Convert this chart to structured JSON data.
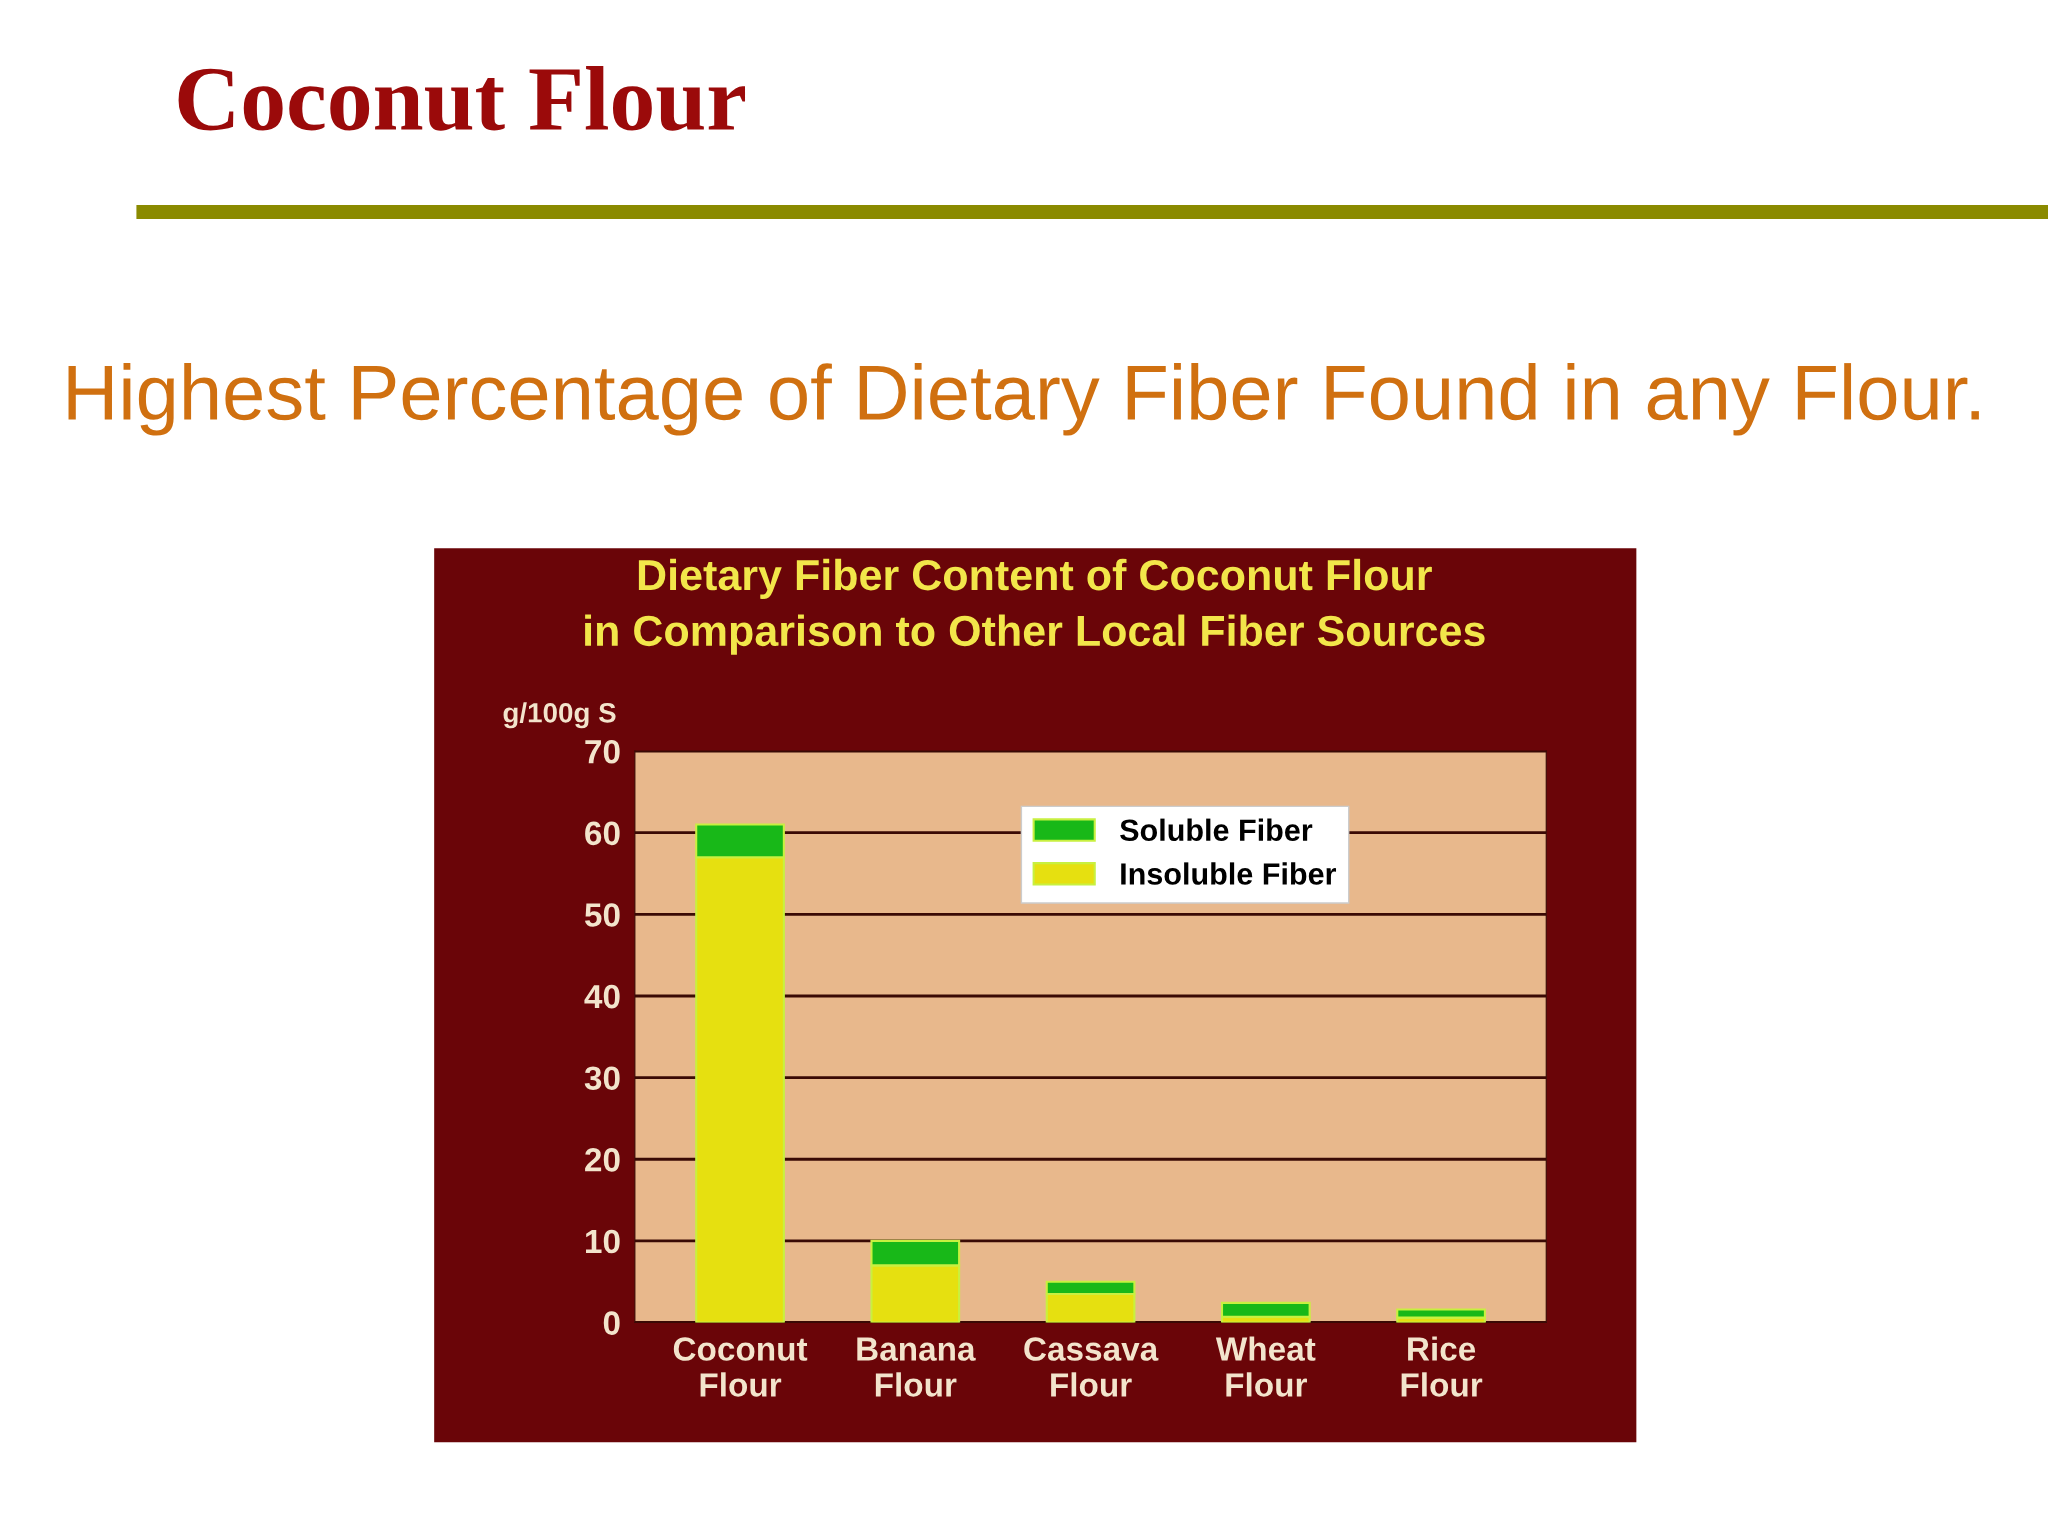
{
  "chart_data": {
    "type": "bar",
    "stacked": true,
    "title": "Dietary Fiber Content of Coconut Flour\nin Comparison to Other Local Fiber Sources",
    "ylabel": "g/100g S",
    "annotations": [
      "Coconut Flour",
      "Highest Percentage of Dietary Fiber Found in any Flour."
    ],
    "categories": [
      "Coconut\nFlour",
      "Banana\nFlour",
      "Cassava\nFlour",
      "Wheat\nFlour",
      "Rice\nFlour"
    ],
    "series": [
      {
        "name": "Insoluble Fiber",
        "color": "#e6e010",
        "values": [
          57,
          7,
          3.5,
          0.7,
          0.6
        ]
      },
      {
        "name": "Soluble Fiber",
        "color": "#18b818",
        "values": [
          4,
          3,
          1.5,
          1.7,
          1.0
        ]
      }
    ],
    "ylim": [
      0,
      70
    ],
    "yticks": [
      0,
      10,
      20,
      30,
      40,
      50,
      60,
      70
    ],
    "grid": "y",
    "legend": "top right"
  }
}
